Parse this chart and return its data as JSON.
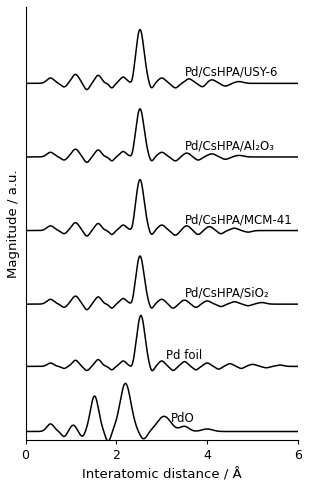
{
  "title": "",
  "xlabel": "Interatomic distance / Å",
  "ylabel": "Magnitude / a.u.",
  "xlim": [
    0,
    6
  ],
  "labels": [
    "PdO",
    "Pd foil",
    "Pd/CsHPA/SiO₂",
    "Pd/CsHPA/MCM-41",
    "Pd/CsHPA/Al₂O₃",
    "Pd/CsHPA/USY-6"
  ],
  "label_x_pos": [
    3.2,
    3.1,
    3.5,
    3.5,
    3.5,
    3.5
  ],
  "label_y_above": [
    0.012,
    0.008,
    0.008,
    0.008,
    0.008,
    0.008
  ],
  "offsets": [
    0.0,
    0.115,
    0.225,
    0.355,
    0.485,
    0.615
  ],
  "background_color": "#ffffff",
  "line_color": "#000000",
  "line_width": 1.1,
  "tick_fontsize": 9,
  "label_fontsize": 8.5,
  "axis_label_fontsize": 9.5
}
